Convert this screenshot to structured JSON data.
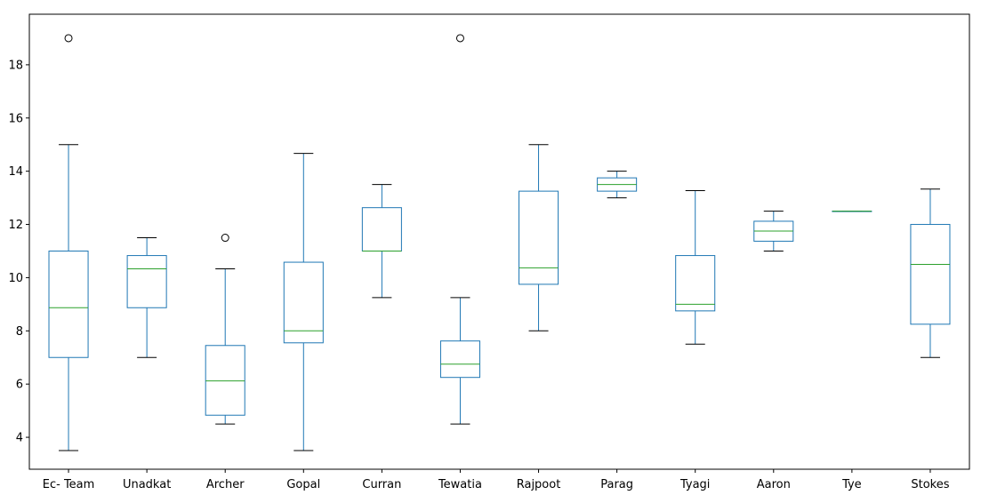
{
  "chart_data": {
    "type": "boxplot",
    "title": "",
    "xlabel": "",
    "ylabel": "",
    "ylim": [
      2.8,
      19.9
    ],
    "yticks": [
      4,
      6,
      8,
      10,
      12,
      14,
      16,
      18
    ],
    "grid": false,
    "legend": "none",
    "colors": {
      "box": "#1f77b4",
      "median": "#2ca02c",
      "whisker_cap": "#000000",
      "flier": "#000000"
    },
    "categories": [
      "Ec- Team",
      "Unadkat",
      "Archer",
      "Gopal",
      "Curran",
      "Tewatia",
      "Rajpoot",
      "Parag",
      "Tyagi",
      "Aaron",
      "Tye",
      "Stokes"
    ],
    "boxes": [
      {
        "whislo": 3.5,
        "q1": 7.0,
        "med": 8.87,
        "q3": 11.0,
        "whishi": 15.0,
        "fliers": [
          19.0
        ]
      },
      {
        "whislo": 7.0,
        "q1": 8.87,
        "med": 10.33,
        "q3": 10.83,
        "whishi": 11.5,
        "fliers": []
      },
      {
        "whislo": 4.5,
        "q1": 4.83,
        "med": 6.12,
        "q3": 7.45,
        "whishi": 10.33,
        "fliers": [
          11.5
        ]
      },
      {
        "whislo": 3.5,
        "q1": 7.55,
        "med": 8.0,
        "q3": 10.58,
        "whishi": 14.67,
        "fliers": []
      },
      {
        "whislo": 9.25,
        "q1": 11.0,
        "med": 11.0,
        "q3": 12.63,
        "whishi": 13.5,
        "fliers": []
      },
      {
        "whislo": 4.5,
        "q1": 6.25,
        "med": 6.75,
        "q3": 7.62,
        "whishi": 9.25,
        "fliers": [
          19.0
        ]
      },
      {
        "whislo": 8.0,
        "q1": 9.75,
        "med": 10.37,
        "q3": 13.25,
        "whishi": 15.0,
        "fliers": []
      },
      {
        "whislo": 13.0,
        "q1": 13.25,
        "med": 13.5,
        "q3": 13.75,
        "whishi": 14.0,
        "fliers": []
      },
      {
        "whislo": 7.5,
        "q1": 8.75,
        "med": 9.0,
        "q3": 10.83,
        "whishi": 13.27,
        "fliers": []
      },
      {
        "whislo": 11.0,
        "q1": 11.37,
        "med": 11.75,
        "q3": 12.12,
        "whishi": 12.5,
        "fliers": []
      },
      {
        "whislo": 12.5,
        "q1": 12.5,
        "med": 12.5,
        "q3": 12.5,
        "whishi": 12.5,
        "fliers": []
      },
      {
        "whislo": 7.0,
        "q1": 8.25,
        "med": 10.5,
        "q3": 12.0,
        "whishi": 13.33,
        "fliers": []
      }
    ]
  }
}
